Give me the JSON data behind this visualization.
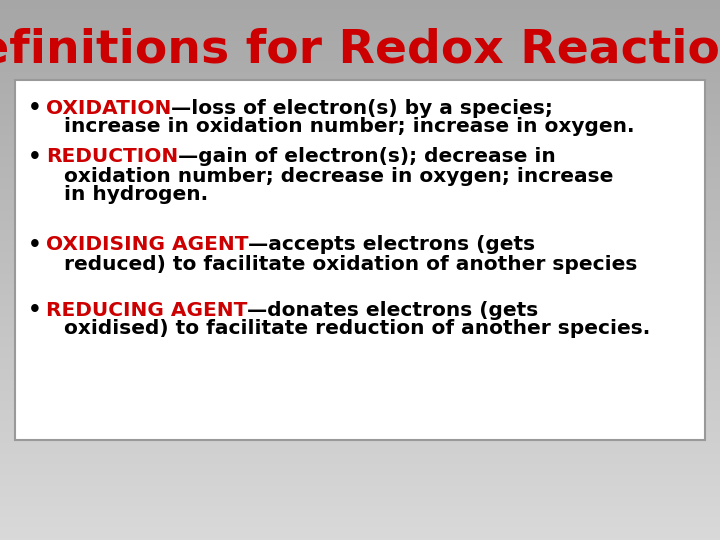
{
  "title": "Definitions for Redox Reactions",
  "title_color": "#CC0000",
  "title_fontsize": 34,
  "title_font": "DejaVu Sans",
  "bg_top_color": "#a8a8a8",
  "bg_bottom_color": "#d0d0d0",
  "box_bg": "#ffffff",
  "box_edge_color": "#999999",
  "red_color": "#CC0000",
  "black_color": "#000000",
  "bullet_fontsize": 14.5,
  "bullet_font": "DejaVu Sans",
  "figsize": [
    7.2,
    5.4
  ],
  "dpi": 100,
  "bullet_data": [
    {
      "line1_keyword": "OXIDATION",
      "line1_rest": "—loss of electron(s) by a species;",
      "extra_lines": [
        "increase in oxidation number; increase in oxygen."
      ]
    },
    {
      "line1_keyword": "REDUCTION",
      "line1_rest": "—gain of electron(s); decrease in",
      "extra_lines": [
        "oxidation number; decrease in oxygen; increase",
        "in hydrogen."
      ]
    },
    {
      "line1_keyword": "OXIDISING AGENT",
      "line1_rest": "—accepts electrons (gets",
      "extra_lines": [
        "reduced) to facilitate oxidation of another species"
      ]
    },
    {
      "line1_keyword": "REDUCING AGENT",
      "line1_rest": "—donates electrons (gets",
      "extra_lines": [
        "oxidised) to facilitate reduction of another species."
      ]
    }
  ]
}
